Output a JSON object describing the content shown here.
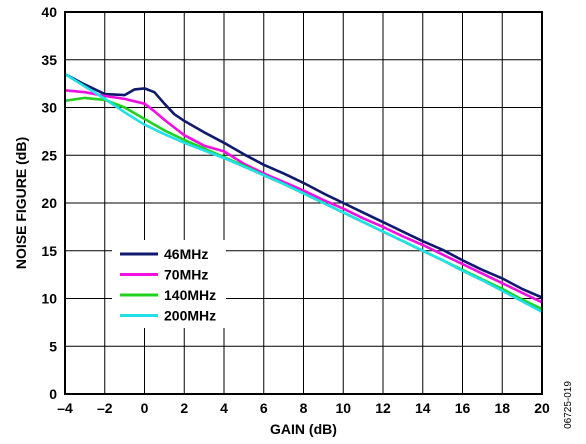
{
  "chart_data": {
    "type": "line",
    "title": "",
    "xlabel": "GAIN (dB)",
    "ylabel": "NOISE FIGURE (dB)",
    "xlim": [
      -4,
      20
    ],
    "ylim": [
      0,
      40
    ],
    "xticks": [
      -4,
      -2,
      0,
      2,
      4,
      6,
      8,
      10,
      12,
      14,
      16,
      18,
      20
    ],
    "xtick_labels": [
      "–4",
      "–2",
      "0",
      "2",
      "4",
      "6",
      "8",
      "10",
      "12",
      "14",
      "16",
      "18",
      "20"
    ],
    "yticks": [
      0,
      5,
      10,
      15,
      20,
      25,
      30,
      35,
      40
    ],
    "ytick_labels": [
      "0",
      "5",
      "10",
      "15",
      "20",
      "25",
      "30",
      "35",
      "40"
    ],
    "grid": true,
    "legend_position": "lower-left",
    "series": [
      {
        "name": "46MHz",
        "color": "#0f1a6e",
        "x": [
          -4,
          -3,
          -2,
          -1,
          -0.5,
          0,
          0.5,
          1,
          1.5,
          2,
          3,
          4,
          5,
          6,
          7,
          8,
          9,
          10,
          11,
          12,
          13,
          14,
          15,
          16,
          17,
          18,
          19,
          20
        ],
        "y": [
          33.5,
          32.4,
          31.4,
          31.3,
          31.9,
          32.0,
          31.6,
          30.4,
          29.3,
          28.6,
          27.4,
          26.3,
          25.1,
          24.0,
          23.1,
          22.1,
          21.0,
          20.0,
          19.0,
          18.0,
          17.0,
          16.0,
          15.1,
          14.0,
          13.0,
          12.1,
          11.0,
          10.1
        ]
      },
      {
        "name": "70MHz",
        "color": "#f010e0",
        "x": [
          -4,
          -3,
          -2,
          -1,
          0,
          0.5,
          1,
          2,
          3,
          4,
          5,
          6,
          7,
          8,
          9,
          10,
          11,
          12,
          13,
          14,
          15,
          16,
          17,
          18,
          19,
          20
        ],
        "y": [
          31.8,
          31.6,
          31.2,
          30.9,
          30.4,
          29.6,
          28.7,
          27.1,
          26.0,
          25.4,
          24.1,
          23.1,
          22.2,
          21.3,
          20.3,
          19.4,
          18.4,
          17.5,
          16.5,
          15.6,
          14.6,
          13.6,
          12.6,
          11.6,
          10.6,
          9.6
        ]
      },
      {
        "name": "140MHz",
        "color": "#22d020",
        "x": [
          -4,
          -3,
          -2,
          -1,
          0,
          1,
          2,
          3,
          4,
          5,
          6,
          7,
          8,
          9,
          10,
          11,
          12,
          13,
          14,
          15,
          16,
          17,
          18,
          19,
          20
        ],
        "y": [
          30.7,
          31.0,
          30.8,
          30.0,
          28.8,
          27.6,
          26.6,
          25.7,
          24.8,
          23.9,
          22.9,
          22.0,
          21.0,
          20.0,
          19.0,
          18.0,
          17.0,
          16.0,
          15.0,
          14.0,
          13.0,
          12.0,
          11.0,
          9.9,
          8.9
        ]
      },
      {
        "name": "200MHz",
        "color": "#20e0e8",
        "x": [
          -4,
          -3,
          -2,
          -1,
          0,
          1,
          2,
          3,
          4,
          5,
          6,
          7,
          8,
          9,
          10,
          11,
          12,
          13,
          14,
          15,
          16,
          17,
          18,
          19,
          20
        ],
        "y": [
          33.5,
          32.2,
          30.9,
          29.5,
          28.2,
          27.2,
          26.3,
          25.5,
          24.7,
          23.8,
          22.9,
          22.0,
          21.0,
          20.0,
          19.0,
          18.0,
          17.0,
          16.0,
          15.0,
          14.0,
          12.9,
          11.9,
          10.8,
          9.7,
          8.6
        ]
      }
    ]
  },
  "figure_id": "06725-019"
}
